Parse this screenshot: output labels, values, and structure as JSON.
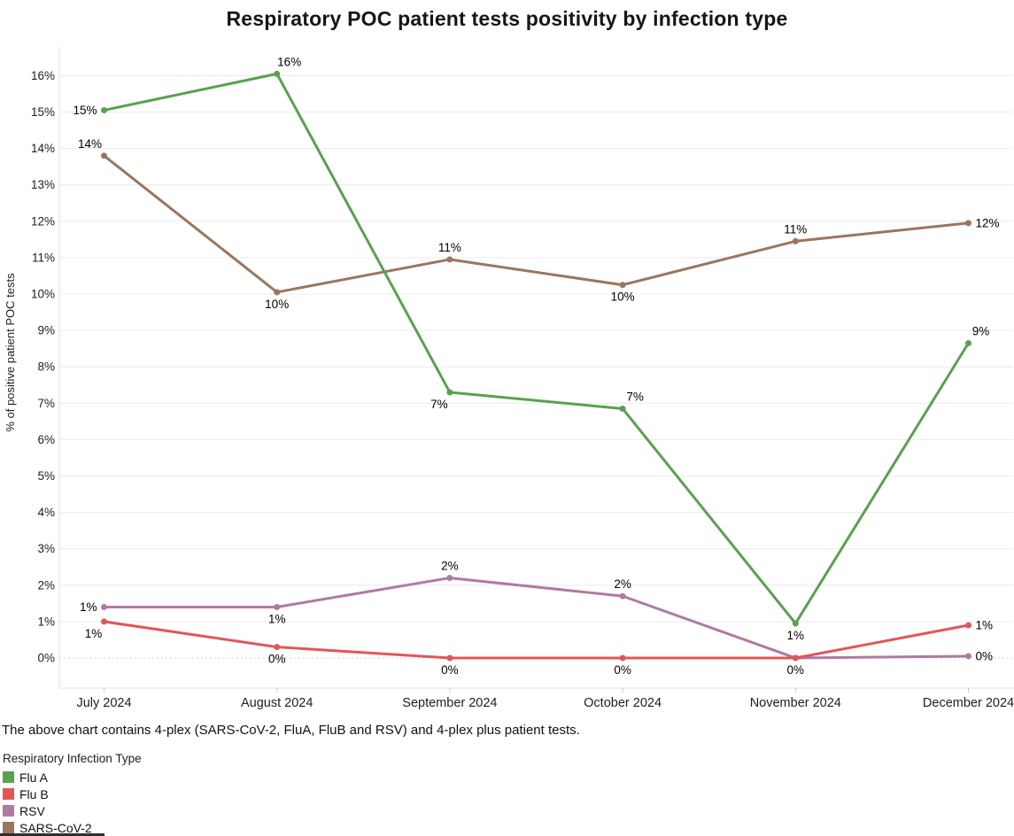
{
  "title": "Respiratory POC patient tests positivity by infection type",
  "caption": "The above chart contains 4-plex (SARS-CoV-2, FluA, FluB and RSV) and 4-plex plus patient tests.",
  "legend": {
    "title": "Respiratory Infection Type",
    "items": [
      {
        "label": "Flu A",
        "color": "#59A14F"
      },
      {
        "label": "Flu B",
        "color": "#E15759"
      },
      {
        "label": "RSV",
        "color": "#B07AA1"
      },
      {
        "label": "SARS-CoV-2",
        "color": "#9C755F"
      }
    ]
  },
  "chart_data": {
    "type": "line",
    "title": "Respiratory POC patient tests positivity by infection type",
    "xlabel": "",
    "ylabel": "% of positive patient POC tests",
    "categories": [
      "July 2024",
      "August 2024",
      "September 2024",
      "October 2024",
      "November 2024",
      "December 2024"
    ],
    "ylim": [
      0,
      16
    ],
    "ytick_step": 1,
    "ytick_suffix": "%",
    "grid": "horizontal-light, zero line dotted",
    "legend_position": "bottom-left",
    "series": [
      {
        "name": "Flu A",
        "color": "#59A14F",
        "values": [
          15.05,
          16.05,
          7.3,
          6.85,
          0.95,
          8.65
        ],
        "labels": [
          {
            "text": "15%",
            "pos": "left"
          },
          {
            "text": "16%",
            "pos": "above-right"
          },
          {
            "text": "7%",
            "pos": "below-left"
          },
          {
            "text": "7%",
            "pos": "above-right"
          },
          {
            "text": "1%",
            "pos": "below"
          },
          {
            "text": "9%",
            "pos": "above-right"
          }
        ]
      },
      {
        "name": "Flu B",
        "color": "#E15759",
        "values": [
          1.0,
          0.3,
          0.0,
          0.0,
          0.0,
          0.9
        ],
        "labels": [
          {
            "text": "1%",
            "pos": "below-left"
          },
          {
            "text": "0%",
            "pos": "below"
          },
          {
            "text": "0%",
            "pos": "below"
          },
          {
            "text": "0%",
            "pos": "below"
          },
          {
            "text": "0%",
            "pos": "below"
          },
          {
            "text": "1%",
            "pos": "right"
          }
        ]
      },
      {
        "name": "RSV",
        "color": "#B07AA1",
        "values": [
          1.4,
          1.4,
          2.2,
          1.7,
          0.0,
          0.05
        ],
        "labels": [
          {
            "text": "1%",
            "pos": "left"
          },
          {
            "text": "1%",
            "pos": "below"
          },
          {
            "text": "2%",
            "pos": "above"
          },
          {
            "text": "2%",
            "pos": "above"
          },
          null,
          {
            "text": "0%",
            "pos": "right"
          }
        ]
      },
      {
        "name": "SARS-CoV-2",
        "color": "#9C755F",
        "values": [
          13.8,
          10.05,
          10.95,
          10.25,
          11.45,
          11.95
        ],
        "labels": [
          {
            "text": "14%",
            "pos": "above-left"
          },
          {
            "text": "10%",
            "pos": "below"
          },
          {
            "text": "11%",
            "pos": "above"
          },
          {
            "text": "10%",
            "pos": "below"
          },
          {
            "text": "11%",
            "pos": "above"
          },
          {
            "text": "12%",
            "pos": "right"
          }
        ]
      }
    ]
  }
}
